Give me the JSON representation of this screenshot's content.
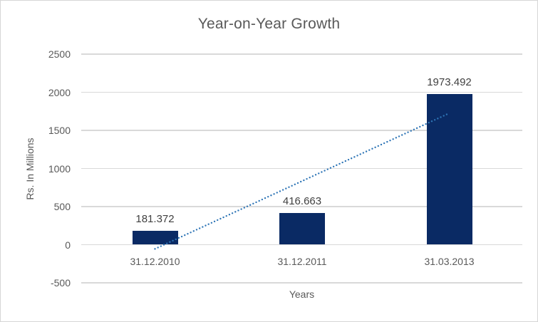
{
  "chart_data": {
    "type": "bar",
    "title": "Year-on-Year Growth",
    "categories": [
      "31.12.2010",
      "31.12.2011",
      "31.03.2013"
    ],
    "values": [
      181.372,
      416.663,
      1973.492
    ],
    "data_labels": [
      "181.372",
      "416.663",
      "1973.492"
    ],
    "xlabel": "Years",
    "ylabel": "Rs. In Millions",
    "ylim": [
      -500,
      2500
    ],
    "ytick_values": [
      2500,
      2000,
      1500,
      1000,
      500,
      0,
      -500
    ],
    "ytick_labels": [
      "2500",
      "2000",
      "1500",
      "1000",
      "500",
      "0",
      "-500"
    ],
    "grid": true,
    "legend": false,
    "trendline": {
      "type": "linear",
      "style": "dotted",
      "start_value": -55,
      "end_value": 1725
    }
  },
  "colors": {
    "bar": "#0A2A64",
    "trendline": "#2E75B6",
    "gridline": "#D9D9D9",
    "title_text": "#595959",
    "axis_text": "#595959",
    "data_label_text": "#404040",
    "border": "#D6D6D6",
    "background": "#FFFFFF"
  }
}
